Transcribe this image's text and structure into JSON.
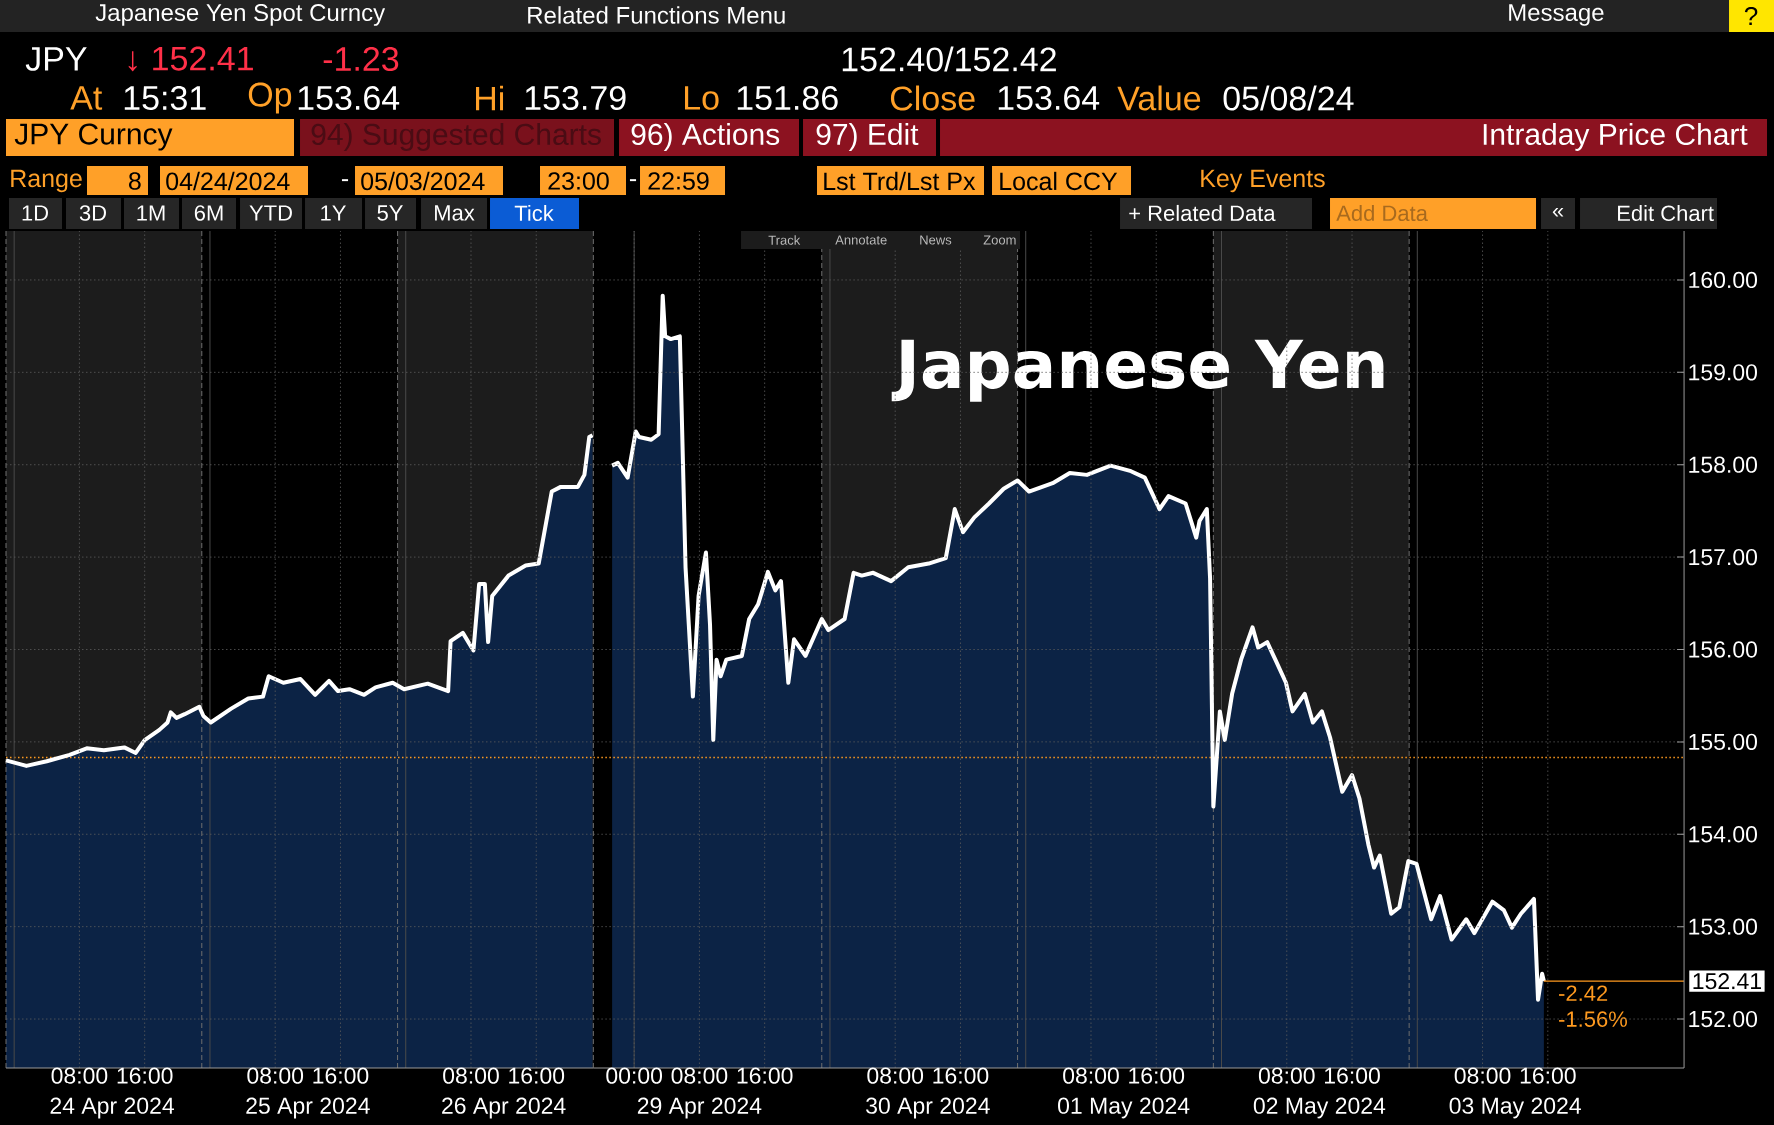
{
  "chart_data": [
    {
      "type": "area",
      "x": [
        "2024-04-23T23:00",
        "2024-04-24T01:30",
        "2024-04-24T04:00",
        "2024-04-24T06:48",
        "2024-04-24T08:54",
        "2024-04-24T11:00",
        "2024-04-24T13:30",
        "2024-04-24T14:54",
        "2024-04-24T16:00",
        "2024-04-24T17:48",
        "2024-04-24T18:48",
        "2024-04-24T19:12",
        "2024-04-24T19:54",
        "2024-04-24T20:54",
        "2024-04-24T22:42",
        "2024-04-24T23:12",
        "2024-04-25T00:06",
        "2024-04-25T02:36",
        "2024-04-25T04:42",
        "2024-04-25T06:30",
        "2024-04-25T07:12",
        "2024-04-25T09:00",
        "2024-04-25T11:06",
        "2024-04-25T12:54",
        "2024-04-25T14:36",
        "2024-04-25T15:42",
        "2024-04-25T17:06",
        "2024-04-25T18:54",
        "2024-04-25T20:18",
        "2024-04-25T22:24",
        "2024-04-25T23:48",
        "2024-04-26T02:42",
        "2024-04-26T05:12",
        "2024-04-26T05:30",
        "2024-04-26T07:00",
        "2024-04-26T08:18",
        "2024-04-26T09:00",
        "2024-04-26T09:42",
        "2024-04-26T10:06",
        "2024-04-26T10:36",
        "2024-04-26T12:36",
        "2024-04-26T14:42",
        "2024-04-26T16:18",
        "2024-04-26T17:54",
        "2024-04-26T19:00",
        "2024-04-26T21:06",
        "2024-04-26T21:54",
        "2024-04-26T22:30",
        "2024-04-26T22:54"
      ],
      "series": [
        {
          "color": "#0c2345",
          "values": [
            154.8,
            154.74,
            154.79,
            154.86,
            154.93,
            154.91,
            154.94,
            154.88,
            155.02,
            155.13,
            155.21,
            155.32,
            155.26,
            155.3,
            155.38,
            155.28,
            155.21,
            155.36,
            155.47,
            155.49,
            155.71,
            155.64,
            155.68,
            155.51,
            155.66,
            155.55,
            155.57,
            155.51,
            155.59,
            155.64,
            155.57,
            155.63,
            155.55,
            156.09,
            156.18,
            155.99,
            156.71,
            156.71,
            156.08,
            156.58,
            156.8,
            156.91,
            156.93,
            157.71,
            157.76,
            157.76,
            157.89,
            158.3,
            158.32
          ]
        }
      ],
      "xlim": [
        "2024-04-23T23:00",
        "2024-04-26T23:00"
      ],
      "ylim": [
        151.47,
        160.53
      ],
      "xticks": [
        {
          "value": "2024-04-24T08:00",
          "label": "08:00"
        },
        {
          "value": "2024-04-24T16:00",
          "label": "16:00"
        },
        {
          "value": "2024-04-25T08:00",
          "label": "08:00"
        },
        {
          "value": "2024-04-25T16:00",
          "label": "16:00"
        },
        {
          "value": "2024-04-26T08:00",
          "label": "08:00"
        },
        {
          "value": "2024-04-26T16:00",
          "label": "16:00"
        }
      ],
      "yticks": [
        152,
        153,
        154,
        155,
        156,
        157,
        158,
        159,
        160
      ],
      "tick_labels": "x",
      "grid": true,
      "bands": [
        {
          "axis": "x",
          "from": "2024-04-23T23:00",
          "to": "2024-04-24T23:00",
          "color": "#1c1c1c"
        },
        {
          "axis": "x",
          "from": "2024-04-25T23:00",
          "to": "2024-04-26T23:00",
          "color": "#1c1c1c"
        }
      ],
      "ref_lines": [
        {
          "axis": "y",
          "value": 154.83,
          "color": "#ff9a1f",
          "line_style": "dotted"
        },
        {
          "axis": "x",
          "value": "2024-04-23T23:00",
          "color": "#6e6e6e",
          "line_style": "dashed"
        },
        {
          "axis": "x",
          "value": "2024-04-24T23:00",
          "color": "#6e6e6e",
          "line_style": "dashed"
        },
        {
          "axis": "x",
          "value": "2024-04-25T23:00",
          "color": "#6e6e6e",
          "line_style": "dashed"
        },
        {
          "axis": "x",
          "value": "2024-04-26T23:00",
          "color": "#6e6e6e",
          "line_style": "dashed"
        },
        {
          "axis": "x",
          "value": "2024-04-24T00:00",
          "color": "#4a4a4a",
          "line_style": "solid"
        },
        {
          "axis": "x",
          "value": "2024-04-25T00:00",
          "color": "#4a4a4a",
          "line_style": "solid"
        },
        {
          "axis": "x",
          "value": "2024-04-26T00:00",
          "color": "#4a4a4a",
          "line_style": "solid"
        }
      ],
      "annotations": [
        "Japanese Yen Spot Curncy",
        "Related Functions Menu",
        "Message",
        "?",
        "JPY",
        "↓ 152.41",
        "-1.23",
        "152.40/152.42",
        "At",
        "15:31",
        "Op",
        "153.64",
        "Hi",
        "153.79",
        "Lo",
        "151.86",
        "Close",
        "153.64",
        "Value",
        "05/08/24",
        "JPY Curncy",
        "94) Suggested Charts",
        "96) Actions",
        "97) Edit",
        "Intraday Price Chart",
        "Range",
        "8",
        "04/24/2024",
        "-",
        "05/03/2024",
        "23:00",
        "-",
        "22:59",
        "Lst Trd/Lst Px",
        "Local CCY",
        "Key Events",
        "1D",
        "3D",
        "1M",
        "6M",
        "YTD",
        "1Y",
        "5Y",
        "Max",
        "Tick",
        "+ Related Data",
        "Add Data",
        "«",
        "Edit Chart",
        "Track",
        "Annotate",
        "News",
        "Zoom",
        "24 Apr 2024",
        "25 Apr 2024",
        "26 Apr 2024"
      ]
    },
    {
      "type": "area",
      "title": "Japanese Yen",
      "x": [
        "2024-04-28T21:18",
        "2024-04-28T22:00",
        "2024-04-28T23:12",
        "2024-04-29T00:12",
        "2024-04-29T00:36",
        "2024-04-29T02:06",
        "2024-04-29T03:00",
        "2024-04-29T03:30",
        "2024-04-29T03:48",
        "2024-04-29T04:30",
        "2024-04-29T05:36",
        "2024-04-29T06:18",
        "2024-04-29T06:42",
        "2024-04-29T07:12",
        "2024-04-29T07:54",
        "2024-04-29T08:48",
        "2024-04-29T09:18",
        "2024-04-29T09:42",
        "2024-04-29T10:06",
        "2024-04-29T10:36",
        "2024-04-29T11:18",
        "2024-04-29T13:12",
        "2024-04-29T14:06",
        "2024-04-29T15:12",
        "2024-04-29T16:24",
        "2024-04-29T17:18",
        "2024-04-29T18:00",
        "2024-04-29T18:54",
        "2024-04-29T19:36",
        "2024-04-29T21:00",
        "2024-04-29T23:00",
        "2024-04-29T23:48",
        "2024-04-30T01:48",
        "2024-04-30T02:54",
        "2024-04-30T03:54",
        "2024-04-30T05:18",
        "2024-04-30T07:30",
        "2024-04-30T09:36",
        "2024-04-30T12:06",
        "2024-04-30T14:12",
        "2024-04-30T15:18",
        "2024-04-30T16:18",
        "2024-04-30T17:42",
        "2024-04-30T19:30",
        "2024-04-30T21:18",
        "2024-04-30T23:00",
        "2024-05-01T00:24",
        "2024-05-01T03:18",
        "2024-05-01T05:24",
        "2024-05-01T07:30",
        "2024-05-01T10:24",
        "2024-05-01T12:54",
        "2024-05-01T14:36",
        "2024-05-01T16:24",
        "2024-05-01T17:30",
        "2024-05-01T19:36",
        "2024-05-01T20:54",
        "2024-05-01T21:18",
        "2024-05-01T22:12",
        "2024-05-01T22:36",
        "2024-05-01T23:00",
        "2024-05-01T23:48",
        "2024-05-02T00:24",
        "2024-05-02T01:18",
        "2024-05-02T02:24",
        "2024-05-02T03:48",
        "2024-05-02T04:30",
        "2024-05-02T05:36",
        "2024-05-02T06:36",
        "2024-05-02T07:54",
        "2024-05-02T08:42",
        "2024-05-02T10:12",
        "2024-05-02T11:12",
        "2024-05-02T12:18",
        "2024-05-02T13:18",
        "2024-05-02T14:48",
        "2024-05-02T16:00",
        "2024-05-02T16:54",
        "2024-05-02T18:00",
        "2024-05-02T18:42",
        "2024-05-02T19:24",
        "2024-05-02T20:48",
        "2024-05-02T21:48",
        "2024-05-02T22:54",
        "2024-05-02T23:54",
        "2024-05-03T01:42",
        "2024-05-03T02:48",
        "2024-05-03T04:12",
        "2024-05-03T06:00",
        "2024-05-03T07:00",
        "2024-05-03T09:12",
        "2024-05-03T10:36",
        "2024-05-03T11:36",
        "2024-05-03T12:42",
        "2024-05-03T14:18",
        "2024-05-03T14:48",
        "2024-05-03T15:18",
        "2024-05-03T15:31"
      ],
      "series": [
        {
          "color": "#0c2345",
          "values": [
            157.99,
            158.02,
            157.86,
            158.36,
            158.3,
            158.27,
            158.33,
            159.83,
            159.39,
            159.36,
            159.39,
            156.89,
            156.27,
            155.49,
            156.58,
            157.05,
            156.27,
            155.02,
            155.89,
            155.71,
            155.89,
            155.93,
            156.33,
            156.49,
            156.84,
            156.64,
            156.74,
            155.64,
            156.11,
            155.93,
            156.33,
            156.21,
            156.33,
            156.83,
            156.8,
            156.83,
            156.74,
            156.89,
            156.93,
            156.99,
            157.52,
            157.27,
            157.43,
            157.58,
            157.74,
            157.83,
            157.71,
            157.8,
            157.91,
            157.89,
            157.99,
            157.93,
            157.86,
            157.52,
            157.66,
            157.58,
            157.21,
            157.39,
            157.52,
            156.77,
            154.3,
            155.33,
            155.02,
            155.52,
            155.89,
            156.24,
            156.02,
            156.08,
            155.89,
            155.64,
            155.33,
            155.52,
            155.21,
            155.33,
            155.05,
            154.46,
            154.64,
            154.39,
            153.89,
            153.64,
            153.77,
            153.14,
            153.21,
            153.71,
            153.68,
            153.08,
            153.33,
            152.86,
            153.08,
            152.93,
            153.27,
            153.18,
            152.99,
            153.14,
            153.3,
            152.21,
            152.49,
            152.41
          ]
        }
      ],
      "xlim": [
        "2024-04-28T19:00",
        "2024-05-04T08:42"
      ],
      "ylim": [
        151.47,
        160.53
      ],
      "xticks": [
        {
          "value": "2024-04-29T00:00",
          "label": "00:00"
        },
        {
          "value": "2024-04-29T08:00",
          "label": "08:00"
        },
        {
          "value": "2024-04-29T16:00",
          "label": "16:00"
        },
        {
          "value": "2024-04-30T08:00",
          "label": "08:00"
        },
        {
          "value": "2024-04-30T16:00",
          "label": "16:00"
        },
        {
          "value": "2024-05-01T08:00",
          "label": "08:00"
        },
        {
          "value": "2024-05-01T16:00",
          "label": "16:00"
        },
        {
          "value": "2024-05-02T08:00",
          "label": "08:00"
        },
        {
          "value": "2024-05-02T16:00",
          "label": "16:00"
        },
        {
          "value": "2024-05-03T08:00",
          "label": "08:00"
        },
        {
          "value": "2024-05-03T16:00",
          "label": "16:00"
        }
      ],
      "yticks": [
        {
          "value": 152,
          "label": "152.00"
        },
        {
          "value": 153,
          "label": "153.00"
        },
        {
          "value": 154,
          "label": "154.00"
        },
        {
          "value": 155,
          "label": "155.00"
        },
        {
          "value": 156,
          "label": "156.00"
        },
        {
          "value": 157,
          "label": "157.00"
        },
        {
          "value": 158,
          "label": "158.00"
        },
        {
          "value": 159,
          "label": "159.00"
        },
        {
          "value": 160,
          "label": "160.00"
        }
      ],
      "grid": true,
      "bands": [
        {
          "axis": "x",
          "from": "2024-04-29T23:00",
          "to": "2024-04-30T23:00",
          "color": "#1c1c1c"
        },
        {
          "axis": "x",
          "from": "2024-05-01T23:00",
          "to": "2024-05-02T23:00",
          "color": "#1c1c1c"
        }
      ],
      "ref_lines": [
        {
          "axis": "y",
          "value": 154.83,
          "color": "#ff9a1f",
          "line_style": "dotted"
        },
        {
          "axis": "x",
          "value": "2024-04-29T23:00",
          "color": "#6e6e6e",
          "line_style": "dashed"
        },
        {
          "axis": "x",
          "value": "2024-04-30T23:00",
          "color": "#6e6e6e",
          "line_style": "dashed"
        },
        {
          "axis": "x",
          "value": "2024-05-01T23:00",
          "color": "#6e6e6e",
          "line_style": "dashed"
        },
        {
          "axis": "x",
          "value": "2024-05-02T23:00",
          "color": "#6e6e6e",
          "line_style": "dashed"
        },
        {
          "axis": "x",
          "value": "2024-04-29T00:00",
          "color": "#4a4a4a",
          "line_style": "solid"
        },
        {
          "axis": "x",
          "value": "2024-04-30T00:00",
          "color": "#4a4a4a",
          "line_style": "solid"
        },
        {
          "axis": "x",
          "value": "2024-05-01T00:00",
          "color": "#4a4a4a",
          "line_style": "solid"
        },
        {
          "axis": "x",
          "value": "2024-05-02T00:00",
          "color": "#4a4a4a",
          "line_style": "solid"
        },
        {
          "axis": "x",
          "value": "2024-05-03T00:00",
          "color": "#4a4a4a",
          "line_style": "solid"
        }
      ],
      "annotations": [
        "29 Apr 2024",
        "30 Apr 2024",
        "01 May 2024",
        "02 May 2024",
        "03 May 2024",
        {
          "text": "152.41",
          "x": "2024-05-03T15:31",
          "y": 152.41
        },
        {
          "text": "-2.42",
          "x": "2024-05-03T15:31",
          "y": 152.41
        },
        {
          "text": "-1.56%",
          "x": "2024-05-03T15:31",
          "y": 152.41
        }
      ]
    }
  ]
}
